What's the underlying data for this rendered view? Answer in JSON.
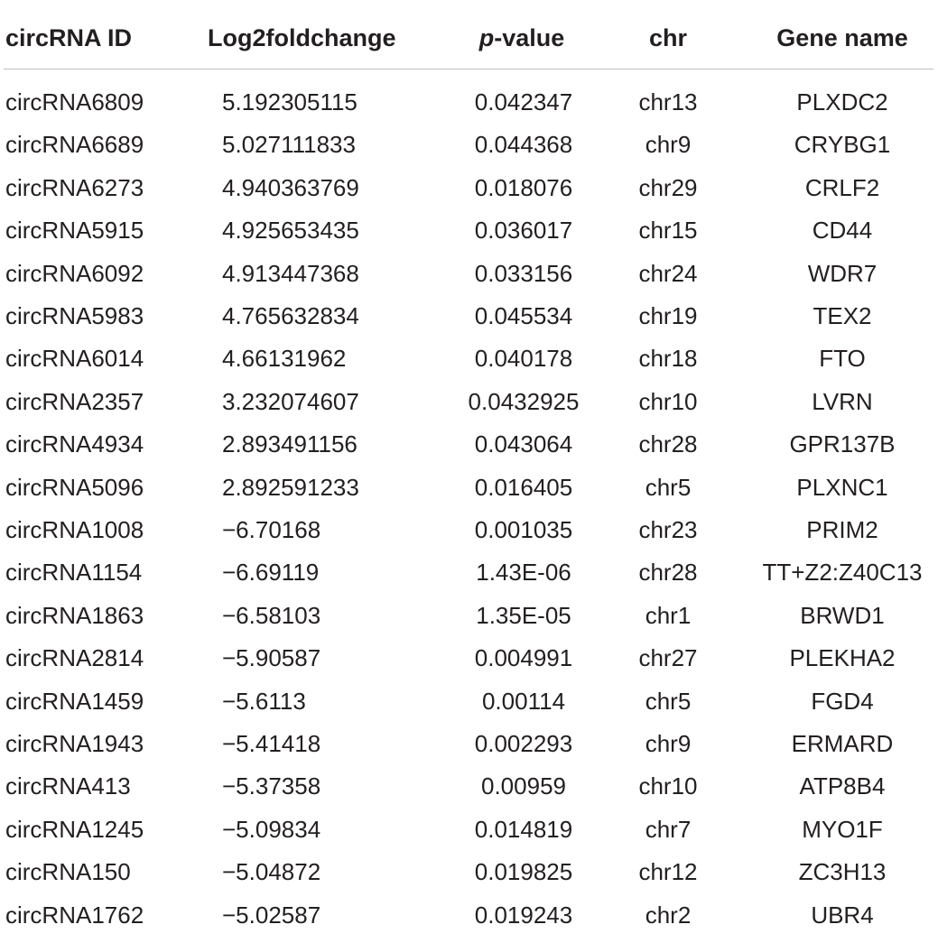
{
  "table": {
    "headers": {
      "id": "circRNA ID",
      "log2fc": "Log2foldchange",
      "p_italic": "p",
      "p_rest": "-value",
      "chr": "chr",
      "gene": "Gene name"
    },
    "rows": [
      {
        "id": "circRNA6809",
        "log2fc": "5.192305115",
        "p": "0.042347",
        "chr": "chr13",
        "gene": "PLXDC2"
      },
      {
        "id": "circRNA6689",
        "log2fc": "5.027111833",
        "p": "0.044368",
        "chr": "chr9",
        "gene": "CRYBG1"
      },
      {
        "id": "circRNA6273",
        "log2fc": "4.940363769",
        "p": "0.018076",
        "chr": "chr29",
        "gene": "CRLF2"
      },
      {
        "id": "circRNA5915",
        "log2fc": "4.925653435",
        "p": "0.036017",
        "chr": "chr15",
        "gene": "CD44"
      },
      {
        "id": "circRNA6092",
        "log2fc": "4.913447368",
        "p": "0.033156",
        "chr": "chr24",
        "gene": "WDR7"
      },
      {
        "id": "circRNA5983",
        "log2fc": "4.765632834",
        "p": "0.045534",
        "chr": "chr19",
        "gene": "TEX2"
      },
      {
        "id": "circRNA6014",
        "log2fc": "4.66131962",
        "p": "0.040178",
        "chr": "chr18",
        "gene": "FTO"
      },
      {
        "id": "circRNA2357",
        "log2fc": "3.232074607",
        "p": "0.0432925",
        "chr": "chr10",
        "gene": "LVRN"
      },
      {
        "id": "circRNA4934",
        "log2fc": "2.893491156",
        "p": "0.043064",
        "chr": "chr28",
        "gene": "GPR137B"
      },
      {
        "id": "circRNA5096",
        "log2fc": "2.892591233",
        "p": "0.016405",
        "chr": "chr5",
        "gene": "PLXNC1"
      },
      {
        "id": "circRNA1008",
        "log2fc": "−6.70168",
        "p": "0.001035",
        "chr": "chr23",
        "gene": "PRIM2"
      },
      {
        "id": "circRNA1154",
        "log2fc": "−6.69119",
        "p": "1.43E-06",
        "chr": "chr28",
        "gene": "TT+Z2:Z40C13"
      },
      {
        "id": "circRNA1863",
        "log2fc": "−6.58103",
        "p": "1.35E-05",
        "chr": "chr1",
        "gene": "BRWD1"
      },
      {
        "id": "circRNA2814",
        "log2fc": "−5.90587",
        "p": "0.004991",
        "chr": "chr27",
        "gene": "PLEKHA2"
      },
      {
        "id": "circRNA1459",
        "log2fc": "−5.6113",
        "p": "0.00114",
        "chr": "chr5",
        "gene": "FGD4"
      },
      {
        "id": "circRNA1943",
        "log2fc": "−5.41418",
        "p": "0.002293",
        "chr": "chr9",
        "gene": "ERMARD"
      },
      {
        "id": "circRNA413",
        "log2fc": "−5.37358",
        "p": "0.00959",
        "chr": "chr10",
        "gene": "ATP8B4"
      },
      {
        "id": "circRNA1245",
        "log2fc": "−5.09834",
        "p": "0.014819",
        "chr": "chr7",
        "gene": "MYO1F"
      },
      {
        "id": "circRNA150",
        "log2fc": "−5.04872",
        "p": "0.019825",
        "chr": "chr12",
        "gene": "ZC3H13"
      },
      {
        "id": "circRNA1762",
        "log2fc": "−5.02587",
        "p": "0.019243",
        "chr": "chr2",
        "gene": "UBR4"
      }
    ]
  }
}
